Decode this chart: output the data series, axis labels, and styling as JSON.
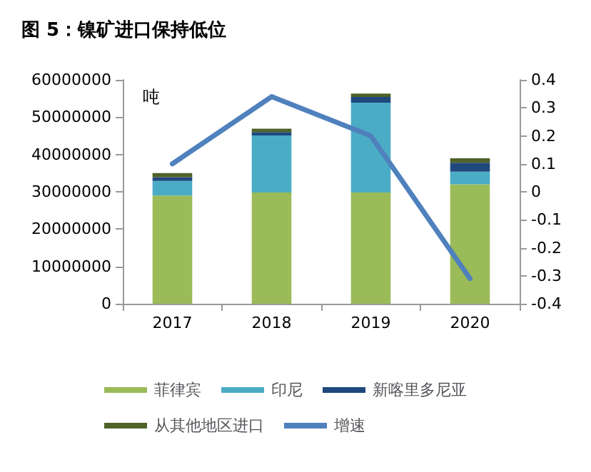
{
  "chart_data": {
    "type": "bar",
    "title": "图 5：镍矿进口保持低位",
    "ylabel": "吨",
    "categories": [
      "2017",
      "2018",
      "2019",
      "2020"
    ],
    "stacked": true,
    "series": [
      {
        "name": "菲律宾",
        "color": "#9bbb59",
        "values": [
          29000000,
          29800000,
          29800000,
          32000000
        ]
      },
      {
        "name": "印尼",
        "color": "#4bacc6",
        "values": [
          3900000,
          15300000,
          24100000,
          3400000
        ]
      },
      {
        "name": "新喀里多尼亚",
        "color": "#1f497d",
        "values": [
          1000000,
          900000,
          1500000,
          2400000
        ]
      },
      {
        "name": "从其他地区进口",
        "color": "#4f6228",
        "values": [
          1100000,
          900000,
          900000,
          1200000
        ]
      },
      {
        "name": "增速",
        "type": "line",
        "axis": "y2",
        "color": "#4f81bd",
        "values": [
          0.1,
          0.34,
          0.2,
          -0.31
        ]
      }
    ],
    "ylim": [
      0,
      60000000
    ],
    "yticks": [
      0,
      10000000,
      20000000,
      30000000,
      40000000,
      50000000,
      60000000
    ],
    "y2lim": [
      -0.4,
      0.4
    ],
    "y2ticks": [
      -0.4,
      -0.3,
      -0.2,
      -0.1,
      0,
      0.1,
      0.2,
      0.3,
      0.4
    ],
    "grid": false,
    "legend": "bottom",
    "marker": "none"
  }
}
